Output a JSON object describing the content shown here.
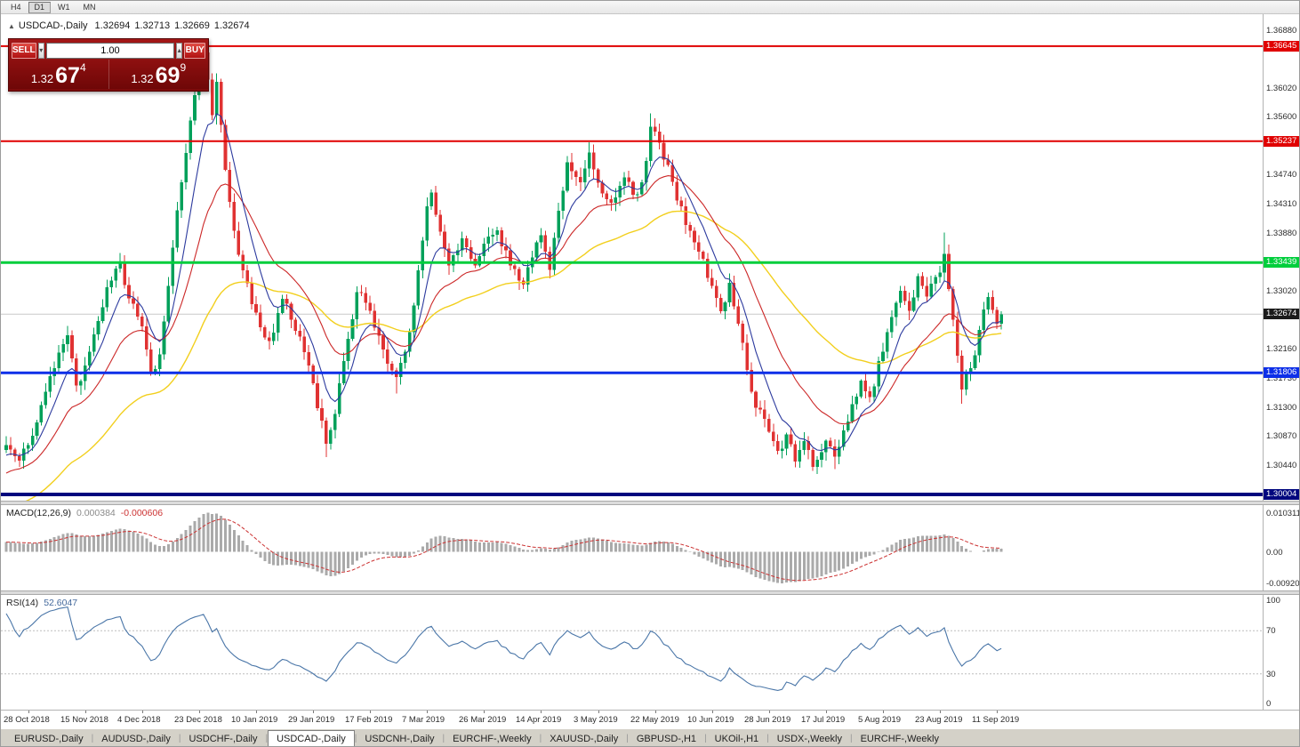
{
  "toolbar": {
    "timeframes": [
      {
        "label": "H4",
        "active": false
      },
      {
        "label": "D1",
        "active": true
      },
      {
        "label": "W1",
        "active": false
      },
      {
        "label": "MN",
        "active": false
      }
    ]
  },
  "chart_header": {
    "collapse_icon": "▲",
    "symbol": "USDCAD-,Daily",
    "open": "1.32694",
    "high": "1.32713",
    "low": "1.32669",
    "close": "1.32674"
  },
  "trade_panel": {
    "sell_label": "SELL",
    "buy_label": "BUY",
    "volume": "1.00",
    "icons": {
      "down_arrow": "▾",
      "up_arrow": "▴"
    },
    "sell_price": {
      "base": "1.32",
      "pips": "67",
      "pipette": "4"
    },
    "buy_price": {
      "base": "1.32",
      "pips": "69",
      "pipette": "9"
    }
  },
  "price_axis": {
    "plain_ticks": [
      1.3688,
      1.3602,
      1.356,
      1.3474,
      1.3431,
      1.3388,
      1.3302,
      1.3216,
      1.3173,
      1.313,
      1.3087,
      1.3044
    ]
  },
  "chart_data": {
    "type": "candlestick",
    "title": "USDCAD-,Daily",
    "price_range": {
      "top": 1.3688,
      "bottom": 1.30004
    },
    "candle_count": 228,
    "pre_roll": 60,
    "colors": {
      "up": "#00a05a",
      "down": "#e03232",
      "grid": "#c9c9c9"
    },
    "anchors": [
      [
        -60,
        1.2845
      ],
      [
        -40,
        1.2915
      ],
      [
        -24,
        1.2975
      ],
      [
        -12,
        1.302
      ],
      [
        -4,
        1.3058
      ],
      [
        0,
        1.3075
      ],
      [
        3,
        1.3048
      ],
      [
        7,
        1.311
      ],
      [
        11,
        1.319
      ],
      [
        14,
        1.3235
      ],
      [
        16,
        1.316
      ],
      [
        18,
        1.319
      ],
      [
        21,
        1.326
      ],
      [
        24,
        1.332
      ],
      [
        26,
        1.3345
      ],
      [
        28,
        1.329
      ],
      [
        31,
        1.325
      ],
      [
        33,
        1.318
      ],
      [
        35,
        1.3205
      ],
      [
        37,
        1.331
      ],
      [
        39,
        1.342
      ],
      [
        41,
        1.3505
      ],
      [
        43,
        1.359
      ],
      [
        45,
        1.3655
      ],
      [
        47,
        1.356
      ],
      [
        48,
        1.3612
      ],
      [
        50,
        1.348
      ],
      [
        52,
        1.339
      ],
      [
        54,
        1.333
      ],
      [
        57,
        1.327
      ],
      [
        60,
        1.3225
      ],
      [
        63,
        1.3292
      ],
      [
        66,
        1.3245
      ],
      [
        69,
        1.319
      ],
      [
        71,
        1.313
      ],
      [
        73,
        1.3078
      ],
      [
        75,
        1.3122
      ],
      [
        78,
        1.323
      ],
      [
        80,
        1.3302
      ],
      [
        83,
        1.327
      ],
      [
        86,
        1.3215
      ],
      [
        89,
        1.3172
      ],
      [
        92,
        1.3242
      ],
      [
        94,
        1.333
      ],
      [
        96,
        1.3425
      ],
      [
        97,
        1.3448
      ],
      [
        99,
        1.339
      ],
      [
        101,
        1.3342
      ],
      [
        104,
        1.338
      ],
      [
        107,
        1.3342
      ],
      [
        109,
        1.3372
      ],
      [
        112,
        1.3392
      ],
      [
        115,
        1.3342
      ],
      [
        118,
        1.3312
      ],
      [
        120,
        1.3352
      ],
      [
        122,
        1.3382
      ],
      [
        124,
        1.3332
      ],
      [
        126,
        1.3422
      ],
      [
        128,
        1.349
      ],
      [
        131,
        1.3462
      ],
      [
        133,
        1.351
      ],
      [
        135,
        1.3462
      ],
      [
        138,
        1.3432
      ],
      [
        141,
        1.3472
      ],
      [
        144,
        1.3442
      ],
      [
        146,
        1.3492
      ],
      [
        147,
        1.3542
      ],
      [
        149,
        1.352
      ],
      [
        152,
        1.3462
      ],
      [
        155,
        1.3402
      ],
      [
        158,
        1.3362
      ],
      [
        161,
        1.3312
      ],
      [
        163,
        1.3272
      ],
      [
        165,
        1.3312
      ],
      [
        167,
        1.3252
      ],
      [
        169,
        1.3182
      ],
      [
        171,
        1.3132
      ],
      [
        174,
        1.3092
      ],
      [
        176,
        1.3062
      ],
      [
        178,
        1.3086
      ],
      [
        180,
        1.3052
      ],
      [
        182,
        1.3076
      ],
      [
        184,
        1.3044
      ],
      [
        186,
        1.3062
      ],
      [
        187,
        1.3082
      ],
      [
        189,
        1.3054
      ],
      [
        191,
        1.3092
      ],
      [
        193,
        1.3132
      ],
      [
        195,
        1.3172
      ],
      [
        197,
        1.3146
      ],
      [
        200,
        1.3212
      ],
      [
        202,
        1.3262
      ],
      [
        204,
        1.3302
      ],
      [
        206,
        1.3272
      ],
      [
        208,
        1.3322
      ],
      [
        210,
        1.3296
      ],
      [
        213,
        1.3332
      ],
      [
        214,
        1.3356
      ],
      [
        216,
        1.3262
      ],
      [
        218,
        1.3156
      ],
      [
        220,
        1.3186
      ],
      [
        222,
        1.3242
      ],
      [
        224,
        1.3292
      ],
      [
        226,
        1.3252
      ],
      [
        227,
        1.32674
      ]
    ],
    "wick_overrides": [
      {
        "i": 45,
        "high": 1.36645
      },
      {
        "i": 73,
        "low": 1.3056
      },
      {
        "i": 89,
        "low": 1.315
      },
      {
        "i": 97,
        "high": 1.3452
      },
      {
        "i": 133,
        "high": 1.3522
      },
      {
        "i": 147,
        "high": 1.3565
      },
      {
        "i": 184,
        "low": 1.3035
      },
      {
        "i": 189,
        "low": 1.3038
      },
      {
        "i": 214,
        "high": 1.3388
      },
      {
        "i": 218,
        "low": 1.3135
      }
    ],
    "moving_averages": [
      {
        "name": "fast",
        "period": 8,
        "color": "#2c3a9e"
      },
      {
        "name": "medium",
        "period": 21,
        "color": "#cc2828"
      },
      {
        "name": "slow",
        "period": 55,
        "color": "#f2cf1d"
      }
    ],
    "horizontal_levels": [
      {
        "value": 1.36645,
        "color": "#e00000",
        "thickness": 2
      },
      {
        "value": 1.35237,
        "color": "#e00000",
        "thickness": 2
      },
      {
        "value": 1.33439,
        "color": "#00ce3c",
        "thickness": 3
      },
      {
        "value": 1.31806,
        "color": "#0d2fe8",
        "thickness": 3
      },
      {
        "value": 1.30004,
        "color": "#00077e",
        "thickness": 4
      }
    ],
    "current_price": {
      "value": 1.32674,
      "tag_color": "#1b1b1b"
    }
  },
  "macd_panel": {
    "label": "MACD(12,26,9)",
    "main_value": "0.000384",
    "signal_value": "-0.000606",
    "axis_top": "0.010311",
    "axis_zero": "0.00",
    "axis_bottom": "-0.00920",
    "histogram_color": "#aaaaaa",
    "signal_color": "#cc3333"
  },
  "rsi_panel": {
    "label": "RSI(14)",
    "value": "52.6047",
    "axis": {
      "top": "100",
      "upper": "70",
      "lower": "30",
      "bottom": "0"
    },
    "line_color": "#4a76a8",
    "level_upper": 70,
    "level_lower": 30
  },
  "date_axis": {
    "labels": [
      "28 Oct 2018",
      "15 Nov 2018",
      "4 Dec 2018",
      "23 Dec 2018",
      "10 Jan 2019",
      "29 Jan 2019",
      "17 Feb 2019",
      "7 Mar 2019",
      "26 Mar 2019",
      "14 Apr 2019",
      "3 May 2019",
      "22 May 2019",
      "10 Jun 2019",
      "28 Jun 2019",
      "17 Jul 2019",
      "5 Aug 2019",
      "23 Aug 2019",
      "11 Sep 2019"
    ],
    "first_index": 5,
    "step": 13
  },
  "tabs": {
    "items": [
      {
        "label": "EURUSD-,Daily",
        "active": false
      },
      {
        "label": "AUDUSD-,Daily",
        "active": false
      },
      {
        "label": "USDCHF-,Daily",
        "active": false
      },
      {
        "label": "USDCAD-,Daily",
        "active": true
      },
      {
        "label": "USDCNH-,Daily",
        "active": false
      },
      {
        "label": "EURCHF-,Weekly",
        "active": false
      },
      {
        "label": "XAUUSD-,Daily",
        "active": false
      },
      {
        "label": "GBPUSD-,H1",
        "active": false
      },
      {
        "label": "UKOil-,H1",
        "active": false
      },
      {
        "label": "USDX-,Weekly",
        "active": false
      },
      {
        "label": "EURCHF-,Weekly",
        "active": false
      }
    ]
  }
}
